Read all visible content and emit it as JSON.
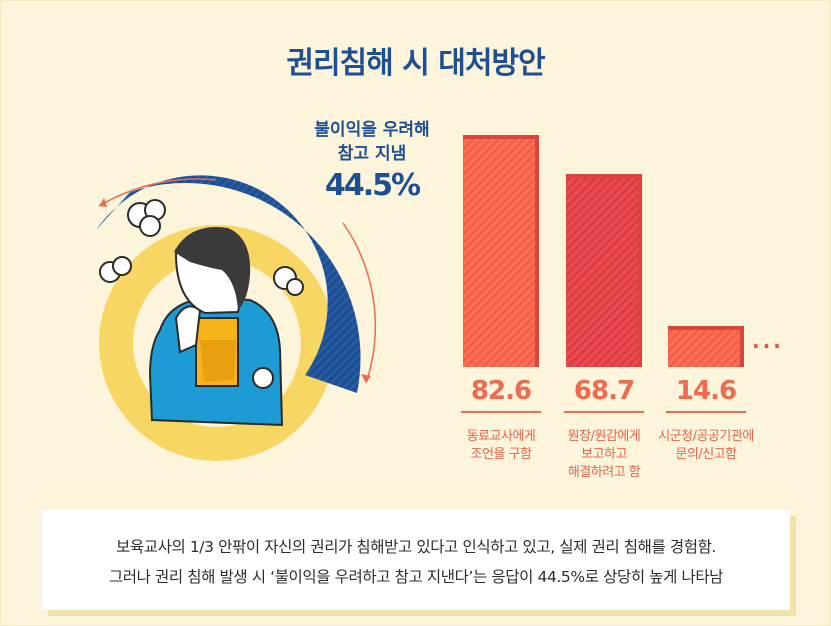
{
  "title": "권리침해 시 대처방안",
  "callout": {
    "line1": "불이익을 우려해",
    "line2": "참고 지냄",
    "percent": "44.5%",
    "value": 44.5
  },
  "chart_data": {
    "type": "bar",
    "categories": [
      "동료교사에게 조언을 구함",
      "원장/원감에게 보고하고 해결하려고 함",
      "시군청/공공기관에 문의/신고함"
    ],
    "values": [
      82.6,
      68.7,
      14.6
    ],
    "value_labels": [
      "82.6",
      "68.7",
      "14.6"
    ],
    "labels_lines": [
      [
        "동료교사에게",
        "조언을 구함"
      ],
      [
        "원장/원감에게",
        "보고하고",
        "해결하려고 함"
      ],
      [
        "시군청/공공기관에",
        "문의/신고함"
      ]
    ],
    "more": "···",
    "ylim": [
      0,
      90
    ],
    "colors": {
      "bar_fill": "#fa6d55",
      "bar_dark": "#d9443d",
      "bar_stripe": "#e9503f"
    }
  },
  "note": {
    "line1": "보육교사의 1/3 안팎이 자신의 권리가 침해받고 있다고 인식하고 있고, 실제 권리 침해를 경험함.",
    "line2": "그러나 권리 침해 발생 시 ‘불이익을 우려하고 참고 지낸다’는 응답이 44.5%로 상당히 높게 나타남"
  },
  "colors": {
    "accent_blue": "#1d4f92",
    "accent_yellow": "#f7d663",
    "accent_red": "#ef6a4f",
    "background": "#fdf5db"
  }
}
